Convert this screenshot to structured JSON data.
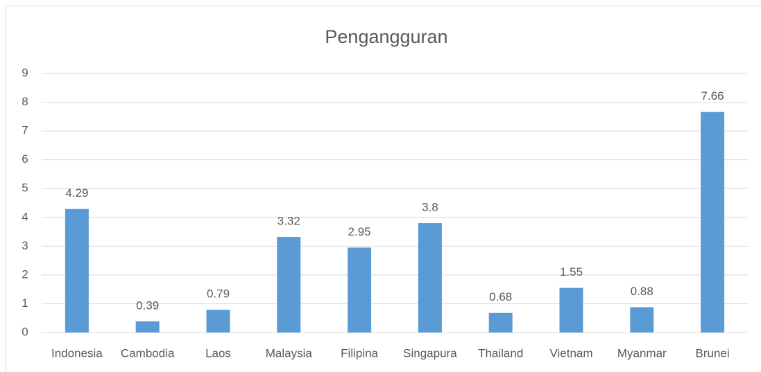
{
  "chart_data": {
    "type": "bar",
    "title": "Pengangguran",
    "categories": [
      "Indonesia",
      "Cambodia",
      "Laos",
      "Malaysia",
      "Filipina",
      "Singapura",
      "Thailand",
      "Vietnam",
      "Myanmar",
      "Brunei"
    ],
    "values": [
      4.29,
      0.39,
      0.79,
      3.32,
      2.95,
      3.8,
      0.68,
      1.55,
      0.88,
      7.66
    ],
    "color": "#5b9bd5",
    "ylim": [
      0,
      9
    ],
    "yticks": [
      0,
      1,
      2,
      3,
      4,
      5,
      6,
      7,
      8,
      9
    ],
    "grid": true,
    "data_labels": true
  }
}
